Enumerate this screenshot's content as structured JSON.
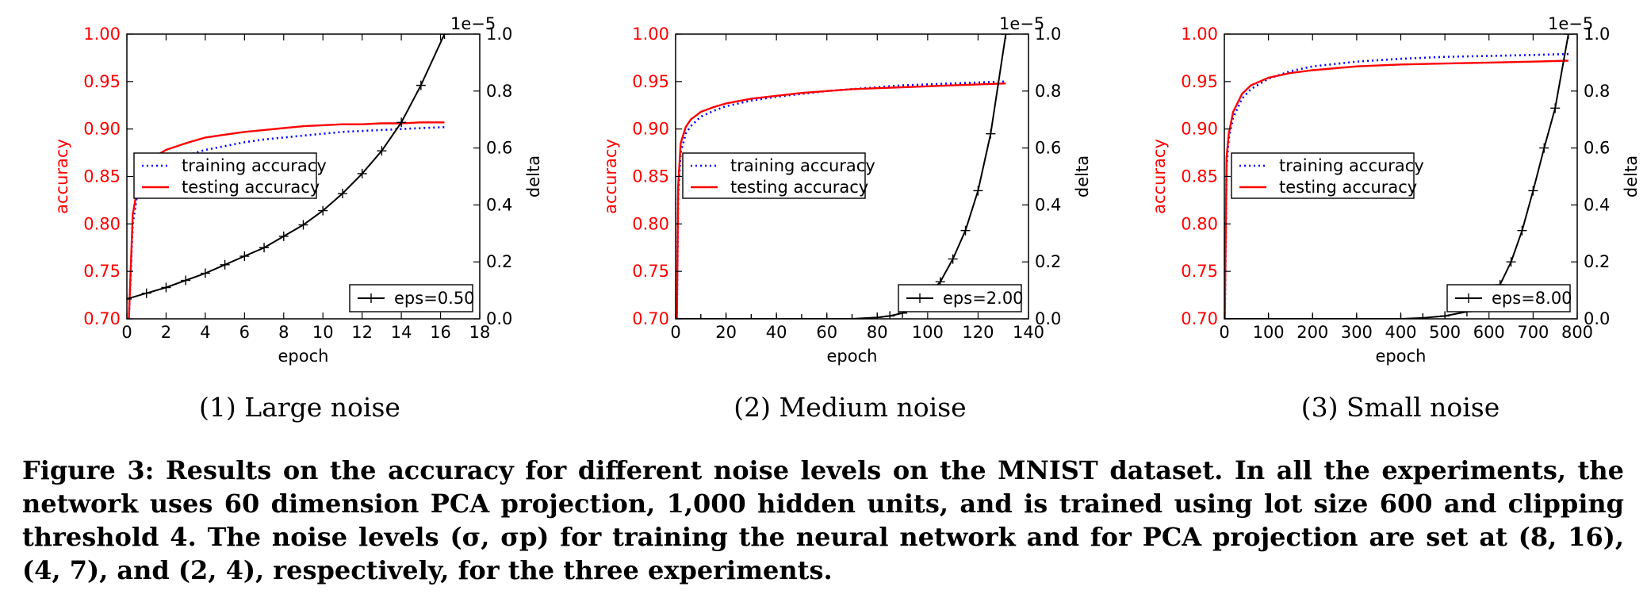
{
  "chart_data": [
    {
      "type": "line",
      "subcaption": "(1) Large noise",
      "xlabel": "epoch",
      "ylabel": "accuracy",
      "y2label": "delta",
      "y2_scale_label": "1e−5",
      "xlim": [
        0,
        18
      ],
      "ylim": [
        0.7,
        1.0
      ],
      "y2lim": [
        0.0,
        1.0
      ],
      "x_ticks": [
        "0",
        "2",
        "4",
        "6",
        "8",
        "10",
        "12",
        "14",
        "16",
        "18"
      ],
      "y_ticks": [
        "0.70",
        "0.75",
        "0.80",
        "0.85",
        "0.90",
        "0.95",
        "1.00"
      ],
      "y2_ticks": [
        "0.0",
        "0.2",
        "0.4",
        "0.6",
        "0.8",
        "1.0"
      ],
      "legend": [
        "training accuracy",
        "testing accuracy"
      ],
      "legend2": "eps=0.50",
      "series": [
        {
          "name": "training accuracy",
          "axis": "left",
          "x": [
            0.1,
            0.3,
            0.6,
            1,
            1.5,
            2,
            3,
            4,
            5,
            6,
            7,
            8,
            9,
            10,
            11,
            12,
            13,
            14,
            15,
            16.2
          ],
          "y": [
            0.7,
            0.8,
            0.84,
            0.856,
            0.862,
            0.866,
            0.872,
            0.878,
            0.882,
            0.886,
            0.889,
            0.891,
            0.893,
            0.895,
            0.897,
            0.898,
            0.899,
            0.9,
            0.901,
            0.902
          ]
        },
        {
          "name": "testing accuracy",
          "axis": "left",
          "x": [
            0.1,
            0.3,
            0.6,
            1,
            1.5,
            2,
            3,
            4,
            5,
            6,
            7,
            8,
            9,
            10,
            11,
            12,
            13,
            14,
            15,
            16.2
          ],
          "y": [
            0.7,
            0.81,
            0.845,
            0.862,
            0.872,
            0.878,
            0.885,
            0.891,
            0.894,
            0.897,
            0.899,
            0.901,
            0.903,
            0.904,
            0.905,
            0.905,
            0.906,
            0.906,
            0.907,
            0.907
          ]
        },
        {
          "name": "eps=0.50",
          "axis": "right",
          "x": [
            0,
            1,
            2,
            3,
            4,
            5,
            6,
            7,
            8,
            9,
            10,
            11,
            12,
            13,
            14,
            15,
            16.2
          ],
          "y": [
            0.07,
            0.09,
            0.11,
            0.135,
            0.16,
            0.19,
            0.22,
            0.25,
            0.29,
            0.33,
            0.38,
            0.44,
            0.51,
            0.59,
            0.69,
            0.82,
            1.0
          ]
        }
      ]
    },
    {
      "type": "line",
      "subcaption": "(2) Medium noise",
      "xlabel": "epoch",
      "ylabel": "accuracy",
      "y2label": "delta",
      "y2_scale_label": "1e−5",
      "xlim": [
        0,
        140
      ],
      "ylim": [
        0.7,
        1.0
      ],
      "y2lim": [
        0.0,
        1.0
      ],
      "x_ticks": [
        "0",
        "20",
        "40",
        "60",
        "80",
        "100",
        "120",
        "140"
      ],
      "y_ticks": [
        "0.70",
        "0.75",
        "0.80",
        "0.85",
        "0.90",
        "0.95",
        "1.00"
      ],
      "y2_ticks": [
        "0.0",
        "0.2",
        "0.4",
        "0.6",
        "0.8",
        "1.0"
      ],
      "legend": [
        "training accuracy",
        "testing accuracy"
      ],
      "legend2": "eps=2.00",
      "series": [
        {
          "name": "training accuracy",
          "axis": "left",
          "x": [
            0.5,
            1,
            2,
            4,
            6,
            10,
            15,
            20,
            30,
            40,
            50,
            60,
            70,
            80,
            90,
            100,
            110,
            120,
            131
          ],
          "y": [
            0.7,
            0.83,
            0.875,
            0.895,
            0.903,
            0.913,
            0.919,
            0.924,
            0.93,
            0.934,
            0.937,
            0.94,
            0.942,
            0.944,
            0.946,
            0.947,
            0.948,
            0.949,
            0.95
          ]
        },
        {
          "name": "testing accuracy",
          "axis": "left",
          "x": [
            0.5,
            1,
            2,
            4,
            6,
            10,
            15,
            20,
            30,
            40,
            50,
            60,
            70,
            80,
            90,
            100,
            110,
            120,
            131
          ],
          "y": [
            0.7,
            0.84,
            0.885,
            0.902,
            0.91,
            0.918,
            0.923,
            0.927,
            0.932,
            0.935,
            0.938,
            0.94,
            0.942,
            0.943,
            0.944,
            0.945,
            0.946,
            0.947,
            0.948
          ]
        },
        {
          "name": "eps=2.00",
          "axis": "right",
          "x": [
            0,
            10,
            20,
            30,
            40,
            50,
            60,
            70,
            80,
            85,
            90,
            95,
            100,
            105,
            110,
            115,
            120,
            125,
            131
          ],
          "y": [
            0,
            0,
            0,
            0,
            0,
            0,
            0,
            0,
            0.005,
            0.01,
            0.02,
            0.04,
            0.08,
            0.13,
            0.21,
            0.31,
            0.45,
            0.65,
            1.0
          ]
        }
      ]
    },
    {
      "type": "line",
      "subcaption": "(3) Small noise",
      "xlabel": "epoch",
      "ylabel": "accuracy",
      "y2label": "delta",
      "y2_scale_label": "1e−5",
      "xlim": [
        0,
        800
      ],
      "ylim": [
        0.7,
        1.0
      ],
      "y2lim": [
        0.0,
        1.0
      ],
      "x_ticks": [
        "0",
        "100",
        "200",
        "300",
        "400",
        "500",
        "600",
        "700",
        "800"
      ],
      "y_ticks": [
        "0.70",
        "0.75",
        "0.80",
        "0.85",
        "0.90",
        "0.95",
        "1.00"
      ],
      "y2_ticks": [
        "0.0",
        "0.2",
        "0.4",
        "0.6",
        "0.8",
        "1.0"
      ],
      "legend": [
        "training accuracy",
        "testing accuracy"
      ],
      "legend2": "eps=8.00",
      "series": [
        {
          "name": "training accuracy",
          "axis": "left",
          "x": [
            1,
            5,
            10,
            20,
            40,
            60,
            100,
            150,
            200,
            300,
            400,
            500,
            600,
            700,
            780
          ],
          "y": [
            0.7,
            0.86,
            0.89,
            0.912,
            0.932,
            0.942,
            0.953,
            0.961,
            0.966,
            0.971,
            0.974,
            0.976,
            0.977,
            0.978,
            0.979
          ]
        },
        {
          "name": "testing accuracy",
          "axis": "left",
          "x": [
            1,
            5,
            10,
            20,
            40,
            60,
            100,
            150,
            200,
            300,
            400,
            500,
            600,
            700,
            780
          ],
          "y": [
            0.7,
            0.87,
            0.895,
            0.918,
            0.937,
            0.946,
            0.954,
            0.959,
            0.962,
            0.966,
            0.968,
            0.969,
            0.97,
            0.971,
            0.972
          ]
        },
        {
          "name": "eps=8.00",
          "axis": "right",
          "x": [
            0,
            100,
            200,
            300,
            400,
            450,
            500,
            550,
            600,
            625,
            650,
            675,
            700,
            725,
            750,
            780
          ],
          "y": [
            0,
            0,
            0,
            0,
            0,
            0.003,
            0.01,
            0.025,
            0.07,
            0.12,
            0.2,
            0.31,
            0.45,
            0.6,
            0.74,
            1.0
          ]
        }
      ]
    }
  ],
  "caption": "Figure 3: Results on the accuracy for different noise levels on the MNIST dataset. In all the experiments, the network uses 60 dimension PCA projection, 1,000 hidden units, and is trained using lot size 600 and clipping threshold 4. The noise levels (σ, σp) for training the neural network and for PCA projection are set at (8, 16), (4, 7), and (2, 4), respectively, for the three experiments.",
  "colors": {
    "training": "#0000ff",
    "testing": "#ff0000",
    "delta": "#000000",
    "left_axis": "#ff0000"
  }
}
